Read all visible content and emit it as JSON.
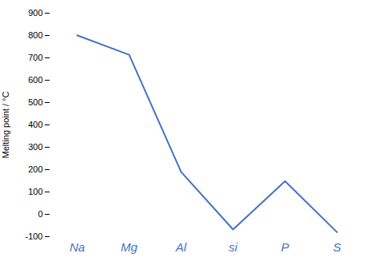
{
  "chart_data": {
    "type": "line",
    "categories": [
      "Na",
      "Mg",
      "Al",
      "si",
      "P",
      "S"
    ],
    "values": [
      801,
      714,
      190,
      -68,
      148,
      -80
    ],
    "color": "#4472C4",
    "ylabel": "Melting point / °C",
    "ylim": [
      -100,
      900
    ],
    "yticks": [
      -100,
      0,
      100,
      200,
      300,
      400,
      500,
      600,
      700,
      800,
      900
    ],
    "grid": false
  }
}
